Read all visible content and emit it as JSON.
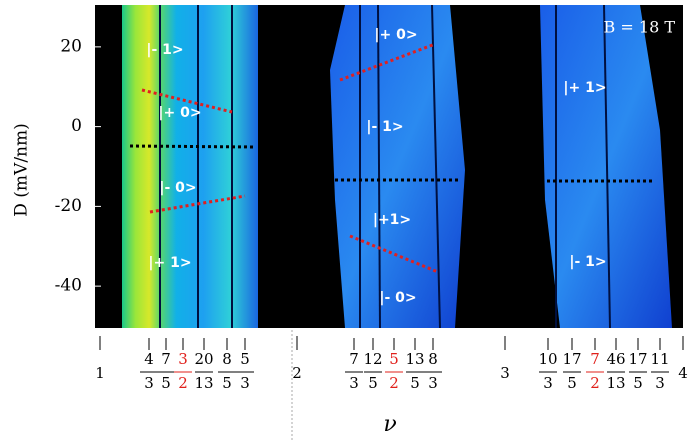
{
  "figure": {
    "annotation": "B = 18 T",
    "y_axis": {
      "label": "D (mV/nm)",
      "lim": [
        -50.5,
        30.5
      ],
      "ticks": [
        -40,
        -20,
        0,
        20
      ]
    },
    "x_axis": {
      "label": "ν",
      "integers": [
        "1",
        "2",
        "3",
        "4"
      ],
      "fractions": [
        {
          "num": "4",
          "den": "3",
          "color": "#000000"
        },
        {
          "num": "7",
          "den": "5",
          "color": "#000000"
        },
        {
          "num": "3",
          "den": "2",
          "color": "#e0201b"
        },
        {
          "num": "20",
          "den": "13",
          "color": "#000000"
        },
        {
          "num": "8",
          "den": "5",
          "color": "#000000"
        },
        {
          "num": "5",
          "den": "3",
          "color": "#000000"
        },
        {
          "num": "7",
          "den": "3",
          "color": "#000000"
        },
        {
          "num": "12",
          "den": "5",
          "color": "#000000"
        },
        {
          "num": "5",
          "den": "2",
          "color": "#e0201b"
        },
        {
          "num": "13",
          "den": "5",
          "color": "#000000"
        },
        {
          "num": "8",
          "den": "3",
          "color": "#000000"
        },
        {
          "num": "10",
          "den": "3",
          "color": "#000000"
        },
        {
          "num": "17",
          "den": "5",
          "color": "#000000"
        },
        {
          "num": "7",
          "den": "2",
          "color": "#e0201b"
        },
        {
          "num": "46",
          "den": "13",
          "color": "#000000"
        },
        {
          "num": "17",
          "den": "5",
          "color": "#000000"
        },
        {
          "num": "11",
          "den": "3",
          "color": "#000000"
        }
      ]
    },
    "states": [
      "|- 1>",
      "|+ 0>",
      "|- 0>",
      "|+ 1>",
      "|+ 0>",
      "|- 1>",
      "|+1>",
      "|- 0>",
      "|+ 1>",
      "|- 1>"
    ]
  }
}
